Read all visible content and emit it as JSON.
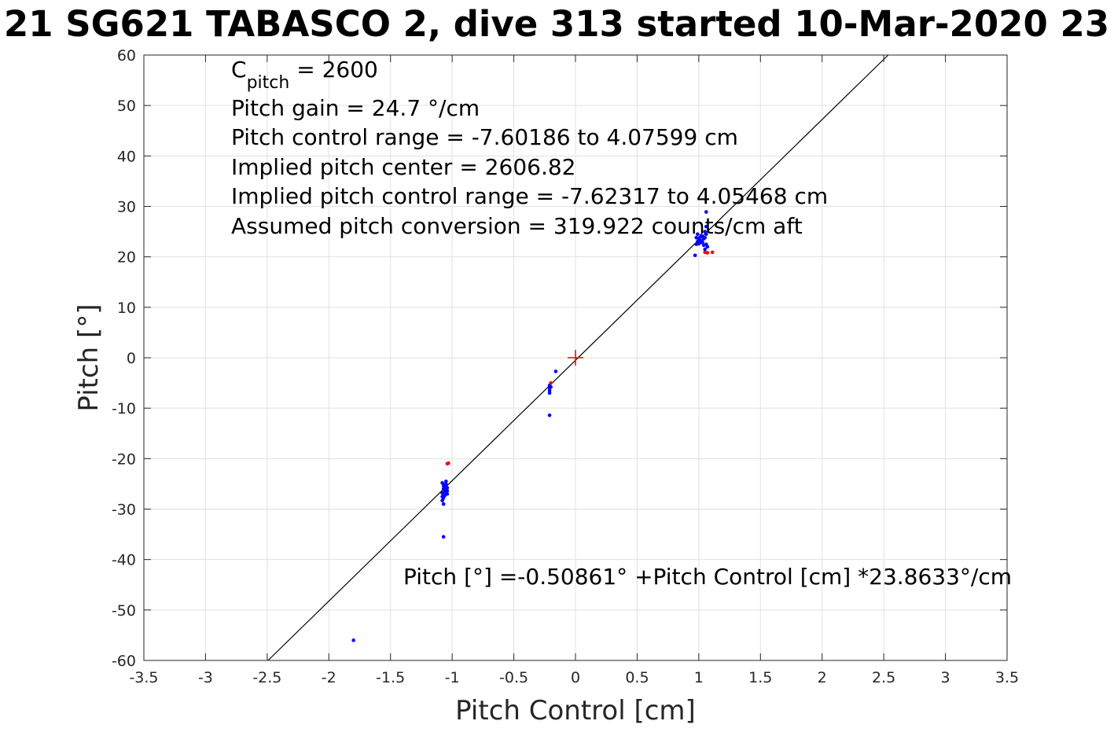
{
  "title": "21 SG621 TABASCO 2, dive 313 started 10-Mar-2020 23",
  "chart_data": {
    "type": "scatter",
    "title": "21 SG621 TABASCO 2, dive 313 started 10-Mar-2020 23",
    "xlabel": "Pitch Control [cm]",
    "ylabel": "Pitch [°]",
    "xlim": [
      -3.5,
      3.5
    ],
    "ylim": [
      -60,
      60
    ],
    "xticks": [
      -3.5,
      -3,
      -2.5,
      -2,
      -1.5,
      -1,
      -0.5,
      0,
      0.5,
      1,
      1.5,
      2,
      2.5,
      3,
      3.5
    ],
    "yticks": [
      -60,
      -50,
      -40,
      -30,
      -20,
      -10,
      0,
      10,
      20,
      30,
      40,
      50,
      60
    ],
    "xtick_labels": [
      "-3.5",
      "-3",
      "-2.5",
      "-2",
      "-1.5",
      "-1",
      "-0.5",
      "0",
      "0.5",
      "1",
      "1.5",
      "2",
      "2.5",
      "3",
      "3.5"
    ],
    "ytick_labels": [
      "-60",
      "-50",
      "-40",
      "-30",
      "-20",
      "-10",
      "0",
      "10",
      "20",
      "30",
      "40",
      "50",
      "60"
    ],
    "grid": true,
    "fit_line": {
      "intercept": -0.50861,
      "slope": 23.8633,
      "color": "#000000"
    },
    "center_marker": {
      "x": 0,
      "y": 0,
      "color": "#ff0000"
    },
    "annotations": {
      "c_pitch_label": "C",
      "c_pitch_subscript": "pitch",
      "c_pitch_value": " = 2600",
      "lines": [
        "Pitch gain = 24.7 °/cm",
        "Pitch control range = -7.60186 to 4.07599 cm",
        "Implied pitch center = 2606.82",
        "Implied pitch control range = -7.62317 to 4.05468 cm",
        "Assumed pitch conversion = 319.922 counts/cm aft"
      ],
      "fit_equation": "Pitch [°] =-0.50861° +Pitch Control [cm] *23.8633°/cm"
    },
    "series": [
      {
        "color": "#0000ff",
        "points": [
          [
            -1.8,
            -56.0
          ],
          [
            -1.07,
            -35.5
          ],
          [
            -1.08,
            -24.8
          ],
          [
            -1.06,
            -25.2
          ],
          [
            -1.05,
            -25.6
          ],
          [
            -1.07,
            -26.0
          ],
          [
            -1.04,
            -26.4
          ],
          [
            -1.08,
            -26.8
          ],
          [
            -1.06,
            -27.3
          ],
          [
            -1.07,
            -27.8
          ],
          [
            -1.05,
            -25.0
          ],
          [
            -1.04,
            -25.8
          ],
          [
            -1.08,
            -28.3
          ],
          [
            -1.07,
            -29.0
          ],
          [
            -1.06,
            -26.2
          ],
          [
            -1.05,
            -24.5
          ],
          [
            -1.07,
            -25.4
          ],
          [
            -1.06,
            -26.6
          ],
          [
            -1.04,
            -27.0
          ],
          [
            -1.08,
            -27.5
          ],
          [
            -0.21,
            -11.4
          ],
          [
            -0.21,
            -5.5
          ],
          [
            -0.21,
            -6.0
          ],
          [
            -0.21,
            -6.5
          ],
          [
            -0.21,
            -7.0
          ],
          [
            -0.2,
            -5.8
          ],
          [
            -0.16,
            -2.7
          ],
          [
            0.97,
            20.3
          ],
          [
            0.98,
            22.5
          ],
          [
            0.99,
            23.0
          ],
          [
            1.0,
            23.5
          ],
          [
            1.01,
            22.8
          ],
          [
            1.02,
            23.2
          ],
          [
            1.03,
            24.0
          ],
          [
            1.04,
            22.3
          ],
          [
            1.05,
            23.8
          ],
          [
            1.06,
            24.5
          ],
          [
            1.07,
            22.0
          ],
          [
            0.99,
            24.5
          ],
          [
            1.0,
            22.6
          ],
          [
            1.02,
            24.2
          ],
          [
            1.04,
            23.6
          ],
          [
            1.05,
            25.0
          ],
          [
            1.06,
            22.5
          ],
          [
            1.06,
            28.9
          ],
          [
            0.98,
            23.8
          ],
          [
            1.01,
            23.9
          ],
          [
            1.03,
            22.9
          ],
          [
            1.05,
            21.5
          ],
          [
            1.06,
            26.0
          ]
        ]
      },
      {
        "color": "#ff0000",
        "points": [
          [
            -1.03,
            -20.9
          ],
          [
            -1.04,
            -21.0
          ],
          [
            -0.2,
            -5.0
          ],
          [
            1.05,
            20.9
          ],
          [
            1.07,
            20.8
          ],
          [
            1.11,
            20.9
          ]
        ]
      }
    ]
  }
}
